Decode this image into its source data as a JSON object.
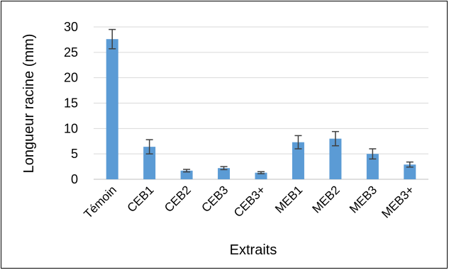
{
  "chart_data": {
    "type": "bar",
    "title": "",
    "xlabel": "Extraits",
    "ylabel": "Longueur racine (mm)",
    "ylim": [
      0,
      30
    ],
    "yticks": [
      0,
      5,
      10,
      15,
      20,
      25,
      30
    ],
    "grid": true,
    "legend": "none",
    "categories": [
      "Témoin",
      "CEB1",
      "CEB2",
      "CEB3",
      "CEB3+",
      "MEB1",
      "MEB2",
      "MEB3",
      "MEB3+"
    ],
    "values": [
      27.6,
      6.4,
      1.7,
      2.2,
      1.3,
      7.3,
      8.0,
      5.0,
      2.9
    ],
    "errors": [
      1.9,
      1.4,
      0.25,
      0.3,
      0.2,
      1.3,
      1.4,
      1.0,
      0.5
    ],
    "colors": {
      "bar": "#5b9bd5",
      "error_bar": "#404040",
      "grid": "#d9d9d9"
    }
  }
}
